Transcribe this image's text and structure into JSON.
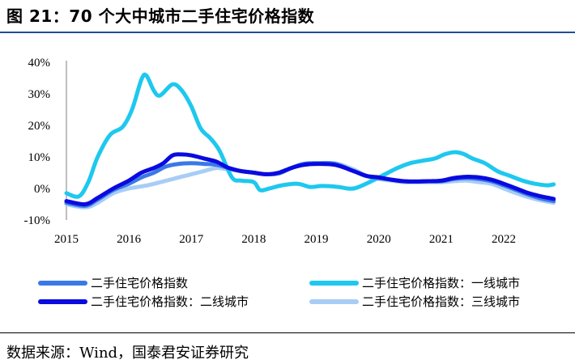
{
  "header": {
    "title": "图 21：70 个大中城市二手住宅价格指数"
  },
  "footer": {
    "source": "数据来源：Wind，国泰君安证券研究"
  },
  "chart_data": {
    "type": "line",
    "title": "",
    "xlabel": "",
    "ylabel": "",
    "ylim": [
      -10,
      40
    ],
    "xlim": [
      2015.0,
      2023.0
    ],
    "x_ticks": [
      "2015",
      "2016",
      "2017",
      "2018",
      "2019",
      "2020",
      "2021",
      "2022"
    ],
    "y_ticks": [
      "-10%",
      "0%",
      "10%",
      "20%",
      "30%",
      "40%"
    ],
    "y_tick_values": [
      -10,
      0,
      10,
      20,
      30,
      40
    ],
    "grid": false,
    "legend_position": "bottom",
    "series": [
      {
        "name": "二手住宅价格指数",
        "color": "#3b78e7",
        "x": [
          2015.0,
          2015.3,
          2015.5,
          2015.75,
          2016.0,
          2016.2,
          2016.4,
          2016.6,
          2016.8,
          2017.0,
          2017.2,
          2017.4,
          2017.6,
          2017.8,
          2018.0,
          2018.2,
          2018.4,
          2018.6,
          2018.8,
          2019.0,
          2019.3,
          2019.6,
          2019.8,
          2020.0,
          2020.2,
          2020.4,
          2020.6,
          2020.8,
          2021.0,
          2021.2,
          2021.4,
          2021.6,
          2021.8,
          2022.0,
          2022.2,
          2022.4,
          2022.6,
          2022.8
        ],
        "values": [
          -4.5,
          -5.5,
          -3.5,
          -0.5,
          1.5,
          3.5,
          5.0,
          7.0,
          7.8,
          8.0,
          7.8,
          7.5,
          6.5,
          5.5,
          5.0,
          4.5,
          4.8,
          6.5,
          7.8,
          8.0,
          7.8,
          5.5,
          4.0,
          3.3,
          2.8,
          2.3,
          2.2,
          2.3,
          2.3,
          3.0,
          3.3,
          3.0,
          2.3,
          1.0,
          -0.5,
          -2.0,
          -3.2,
          -4.0
        ]
      },
      {
        "name": "二手住宅价格指数：一线城市",
        "color": "#1ec8ee",
        "x": [
          2015.0,
          2015.2,
          2015.35,
          2015.5,
          2015.7,
          2015.9,
          2016.05,
          2016.2,
          2016.28,
          2016.4,
          2016.5,
          2016.7,
          2016.85,
          2017.0,
          2017.15,
          2017.3,
          2017.45,
          2017.65,
          2017.8,
          2018.0,
          2018.1,
          2018.25,
          2018.45,
          2018.7,
          2018.9,
          2019.1,
          2019.35,
          2019.6,
          2019.9,
          2020.1,
          2020.3,
          2020.5,
          2020.7,
          2020.9,
          2021.05,
          2021.2,
          2021.35,
          2021.5,
          2021.7,
          2021.9,
          2022.1,
          2022.3,
          2022.5,
          2022.7,
          2022.8
        ],
        "values": [
          -1.5,
          -2.5,
          2.0,
          10.0,
          17.0,
          19.5,
          25.0,
          34.5,
          35.8,
          31.0,
          29.5,
          33.0,
          31.0,
          26.0,
          19.0,
          16.0,
          12.0,
          3.5,
          2.5,
          2.0,
          -0.5,
          0.0,
          1.0,
          1.5,
          0.5,
          0.8,
          0.5,
          0.0,
          2.5,
          4.5,
          6.5,
          8.0,
          8.8,
          9.5,
          10.8,
          11.5,
          11.0,
          9.5,
          8.0,
          5.5,
          4.0,
          2.5,
          1.5,
          1.0,
          1.3
        ]
      },
      {
        "name": "二手住宅价格指数：二线城市",
        "color": "#0a0ae0",
        "x": [
          2015.0,
          2015.3,
          2015.5,
          2015.75,
          2016.0,
          2016.2,
          2016.4,
          2016.55,
          2016.7,
          2016.85,
          2017.0,
          2017.2,
          2017.4,
          2017.6,
          2017.8,
          2018.0,
          2018.2,
          2018.4,
          2018.6,
          2018.8,
          2019.0,
          2019.3,
          2019.6,
          2019.8,
          2020.0,
          2020.2,
          2020.4,
          2020.6,
          2020.8,
          2021.0,
          2021.2,
          2021.4,
          2021.6,
          2021.8,
          2022.0,
          2022.2,
          2022.4,
          2022.6,
          2022.8
        ],
        "values": [
          -4.0,
          -5.0,
          -3.0,
          0.0,
          2.5,
          5.0,
          6.5,
          8.0,
          10.5,
          10.8,
          10.5,
          9.5,
          8.5,
          6.5,
          5.5,
          5.0,
          4.5,
          5.0,
          6.5,
          7.5,
          7.8,
          7.5,
          5.5,
          4.0,
          3.5,
          2.8,
          2.3,
          2.2,
          2.3,
          2.5,
          3.3,
          3.7,
          3.5,
          2.8,
          1.5,
          0.0,
          -1.5,
          -2.5,
          -3.3
        ]
      },
      {
        "name": "二手住宅价格指数：三线城市",
        "color": "#a8cdf5",
        "x": [
          2015.0,
          2015.3,
          2015.5,
          2015.75,
          2016.0,
          2016.3,
          2016.6,
          2016.8,
          2017.0,
          2017.2,
          2017.4,
          2017.6,
          2017.8,
          2018.0,
          2018.2,
          2018.4,
          2018.6,
          2018.8,
          2019.0,
          2019.3,
          2019.6,
          2019.8,
          2020.0,
          2020.2,
          2020.4,
          2020.6,
          2020.8,
          2021.0,
          2021.2,
          2021.4,
          2021.6,
          2021.8,
          2022.0,
          2022.2,
          2022.4,
          2022.6,
          2022.8
        ],
        "values": [
          -5.0,
          -6.0,
          -4.5,
          -1.5,
          0.0,
          1.0,
          2.5,
          3.5,
          4.5,
          5.5,
          6.5,
          6.0,
          5.5,
          5.0,
          4.5,
          5.0,
          6.5,
          7.5,
          7.8,
          8.0,
          6.0,
          4.0,
          3.0,
          2.5,
          2.0,
          2.0,
          2.0,
          2.0,
          2.3,
          2.5,
          2.0,
          1.5,
          0.0,
          -1.5,
          -2.8,
          -3.8,
          -4.5
        ]
      }
    ]
  }
}
